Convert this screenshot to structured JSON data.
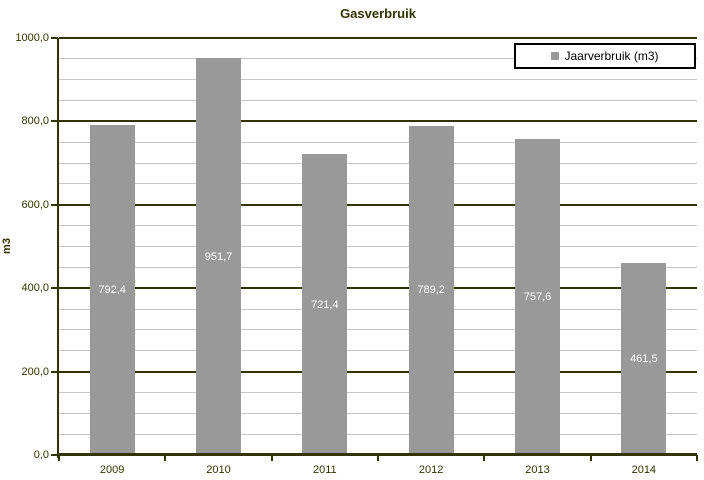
{
  "chart_data": {
    "type": "bar",
    "title": "Gasverbruik",
    "ylabel": "m3",
    "xlabel": "",
    "categories": [
      "2009",
      "2010",
      "2011",
      "2012",
      "2013",
      "2014"
    ],
    "series": [
      {
        "name": "Jaarverbruik (m3)",
        "values": [
          792.4,
          951.7,
          721.4,
          789.2,
          757.6,
          461.5
        ],
        "value_labels": [
          "792,4",
          "951,7",
          "721,4",
          "789,2",
          "757,6",
          "461,5"
        ]
      }
    ],
    "ylim": [
      0,
      1000
    ],
    "y_major_step": 200,
    "y_minor_step": 50,
    "y_tick_labels": [
      "0,0",
      "200,0",
      "400,0",
      "600,0",
      "800,0",
      "1000,0"
    ],
    "grid": {
      "major": true,
      "minor": true
    },
    "legend": {
      "position": "top-right",
      "entries": [
        {
          "label": "Jaarverbruik (m3)",
          "marker": "gray-square"
        }
      ]
    }
  },
  "colors": {
    "background": "#ffffff",
    "bar": "#999999",
    "major_line": "#333300",
    "minor_line": "#c6c6c6",
    "text": "#333300",
    "legend_border": "#000000",
    "legend_text": "#000000",
    "value_label_text": "#ffffff"
  }
}
